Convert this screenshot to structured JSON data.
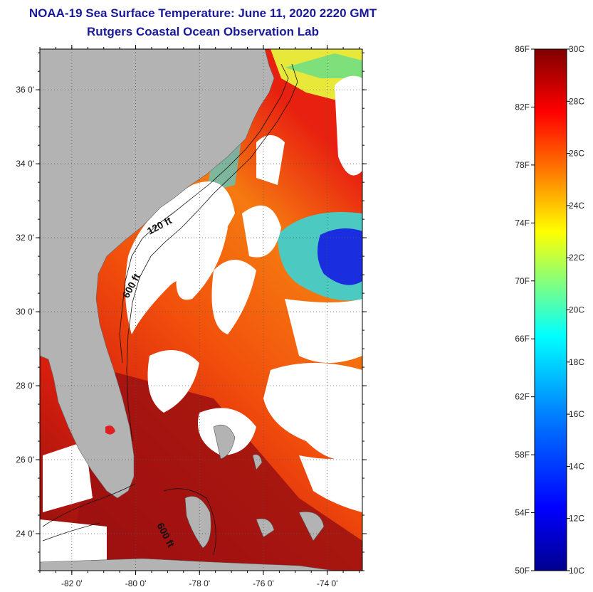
{
  "header": {
    "title": "NOAA-19 Sea Surface Temperature:  June 11, 2020 2220 GMT",
    "subtitle": "Rutgers Coastal Ocean Observation Lab"
  },
  "map": {
    "lon_ticks": [
      {
        "value": -82,
        "label": "-82 0'"
      },
      {
        "value": -80,
        "label": "-80 0'"
      },
      {
        "value": -78,
        "label": "-78 0'"
      },
      {
        "value": -76,
        "label": "-76 0'"
      },
      {
        "value": -74,
        "label": "-74 0'"
      }
    ],
    "lat_ticks": [
      {
        "value": 36,
        "label": "36 0'"
      },
      {
        "value": 34,
        "label": "34 0'"
      },
      {
        "value": 32,
        "label": "32 0'"
      },
      {
        "value": 30,
        "label": "30 0'"
      },
      {
        "value": 28,
        "label": "28 0'"
      },
      {
        "value": 26,
        "label": "26 0'"
      },
      {
        "value": 24,
        "label": "24 0'"
      }
    ],
    "lon_range": [
      -83.0,
      -72.9
    ],
    "lat_range": [
      23.0,
      37.1
    ],
    "depth_labels": [
      "120 ft",
      "600 ft",
      "600 ft"
    ],
    "colors": {
      "land": "#b3b3b3",
      "clouds": "#ffffff"
    }
  },
  "colorbar": {
    "fahrenheit_labels": [
      "86F",
      "82F",
      "78F",
      "74F",
      "70F",
      "66F",
      "62F",
      "58F",
      "54F",
      "50F"
    ],
    "celsius_labels": [
      "30C",
      "28C",
      "26C",
      "24C",
      "22C",
      "20C",
      "18C",
      "16C",
      "14C",
      "12C",
      "10C"
    ],
    "range_c": [
      10,
      30
    ],
    "colormap": [
      "#00008f",
      "#0000ff",
      "#0080ff",
      "#00ffff",
      "#80ff80",
      "#ffff00",
      "#ff8000",
      "#ff0000",
      "#800000"
    ]
  }
}
